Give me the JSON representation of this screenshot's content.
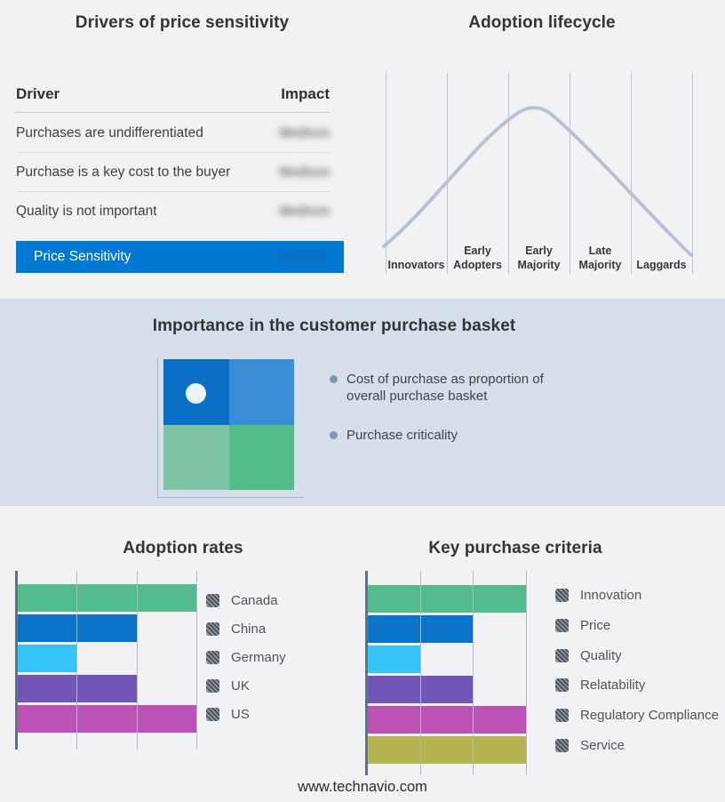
{
  "drivers_panel": {
    "title": "Drivers of price sensitivity",
    "columns": {
      "driver": "Driver",
      "impact": "Impact"
    },
    "rows": [
      {
        "driver": "Purchases are undifferentiated",
        "impact": "Medium"
      },
      {
        "driver": "Purchase is a key cost to the buyer",
        "impact": "Medium"
      },
      {
        "driver": "Quality is not important",
        "impact": "Medium"
      }
    ],
    "highlight_row": {
      "driver": "Price Sensitivity",
      "impact": "Medium"
    },
    "highlight_color": "#0078d4",
    "impact_values_blurred": true
  },
  "lifecycle_panel": {
    "title": "Adoption lifecycle",
    "stages": [
      "Innovators",
      "Early Adopters",
      "Early Majority",
      "Late Majority",
      "Laggards"
    ],
    "curve_color": "#b4c2d7"
  },
  "basket_section": {
    "title": "Importance in the customer purchase basket",
    "background": "#d4dfe9",
    "quadrant_colors": {
      "top_left": "#0b6fc7",
      "top_right": "#398ed6",
      "bottom_left": "#7fc4a0",
      "bottom_right": "#52bc8a"
    },
    "bullets": [
      "Cost of purchase as proportion of overall purchase basket",
      "Purchase criticality"
    ]
  },
  "chart_data": [
    {
      "type": "bar",
      "orientation": "horizontal",
      "title": "Adoption rates",
      "categories": [
        "Canada",
        "China",
        "Germany",
        "UK",
        "US"
      ],
      "values": [
        3,
        2,
        1,
        2,
        3
      ],
      "xlim": [
        0,
        3
      ],
      "gridlines": [
        1,
        2,
        3
      ],
      "colors": [
        "#52bc8c",
        "#0b74c9",
        "#35c2f7",
        "#7156b8",
        "#bd52b6"
      ],
      "legend_position": "right",
      "grid": true
    },
    {
      "type": "bar",
      "orientation": "horizontal",
      "title": "Key purchase criteria",
      "categories": [
        "Innovation",
        "Price",
        "Quality",
        "Relatability",
        "Regulatory Compliance",
        "Service"
      ],
      "values": [
        3,
        2,
        1,
        2,
        3,
        3
      ],
      "xlim": [
        0,
        3
      ],
      "gridlines": [
        1,
        2,
        3
      ],
      "colors": [
        "#52bc8c",
        "#0b74c9",
        "#35c2f7",
        "#7156b8",
        "#bd52b6",
        "#b5b44e"
      ],
      "legend_position": "right",
      "grid": true
    }
  ],
  "footer": {
    "website": "www.technavio.com"
  }
}
